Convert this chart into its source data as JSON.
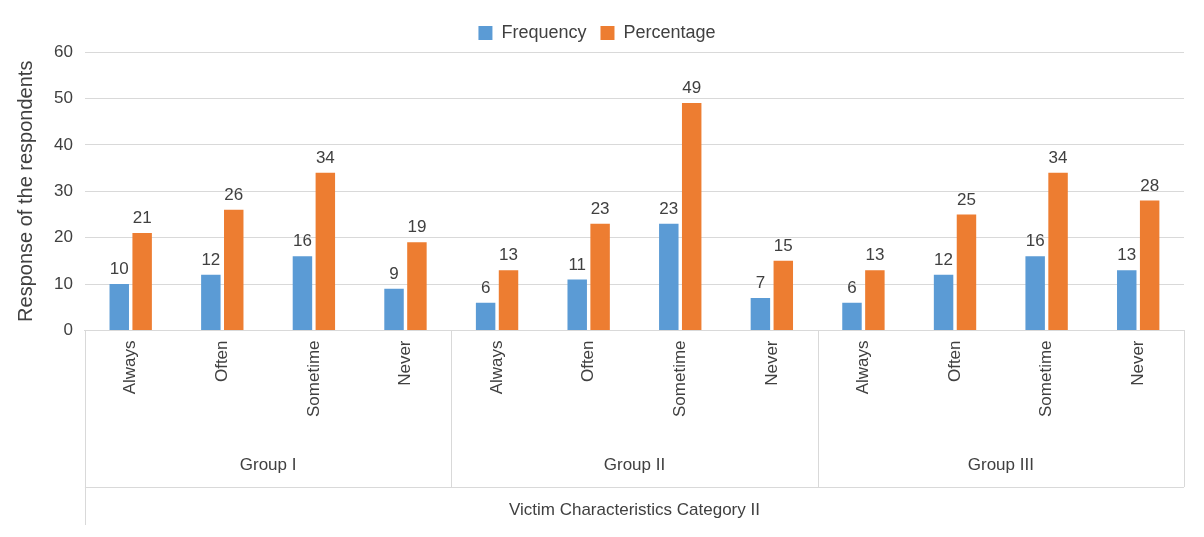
{
  "chart_data": {
    "type": "bar",
    "xlabel": "Victim Characteristics Category II",
    "ylabel": "Response of the respondents",
    "categories": [
      "Always",
      "Often",
      "Sometime",
      "Never",
      "Always",
      "Often",
      "Sometime",
      "Never",
      "Always",
      "Often",
      "Sometime",
      "Never"
    ],
    "annotations": [
      "Group I",
      "Group II",
      "Group III"
    ],
    "series": [
      {
        "name": "Frequency",
        "color": "#5b9bd5",
        "values": [
          10,
          12,
          16,
          9,
          6,
          11,
          23,
          7,
          6,
          12,
          16,
          13
        ]
      },
      {
        "name": "Percentage",
        "color": "#ed7d31",
        "values": [
          21,
          26,
          34,
          19,
          13,
          23,
          49,
          15,
          13,
          25,
          34,
          28
        ]
      }
    ],
    "ylim": [
      0,
      60
    ],
    "yticks": [
      0,
      10,
      20,
      30,
      40,
      50,
      60
    ],
    "grid": "y",
    "legend": "top",
    "data_labels": true
  }
}
